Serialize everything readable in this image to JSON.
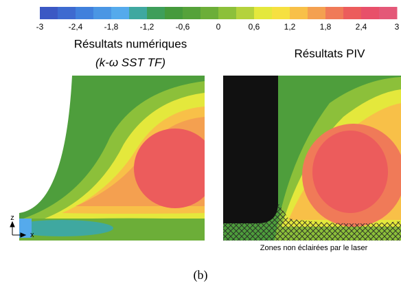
{
  "colorbar": {
    "ticks": [
      "-3",
      "-2,4",
      "-1,8",
      "-1,2",
      "-0,6",
      "0",
      "0,6",
      "1,2",
      "1,8",
      "2,4",
      "3"
    ],
    "colors": [
      "#3b58c4",
      "#3d6ad0",
      "#4080dc",
      "#4a96e4",
      "#55aaec",
      "#3fa8a0",
      "#3e9e5a",
      "#459a3c",
      "#55a23a",
      "#6cae38",
      "#8cc03a",
      "#b4d23c",
      "#e4e83c",
      "#f6e040",
      "#f8c048",
      "#f4a050",
      "#f07a58",
      "#ec5c5c",
      "#e8506a",
      "#e45878"
    ]
  },
  "panels": [
    {
      "title": "Résultats numériques",
      "subtitle": "(k-ω SST TF)"
    },
    {
      "title": "Résultats PIV",
      "annotation": "Zones non éclairées par le laser"
    }
  ],
  "axes": {
    "z": "z",
    "x": "x"
  },
  "caption": "(b)"
}
